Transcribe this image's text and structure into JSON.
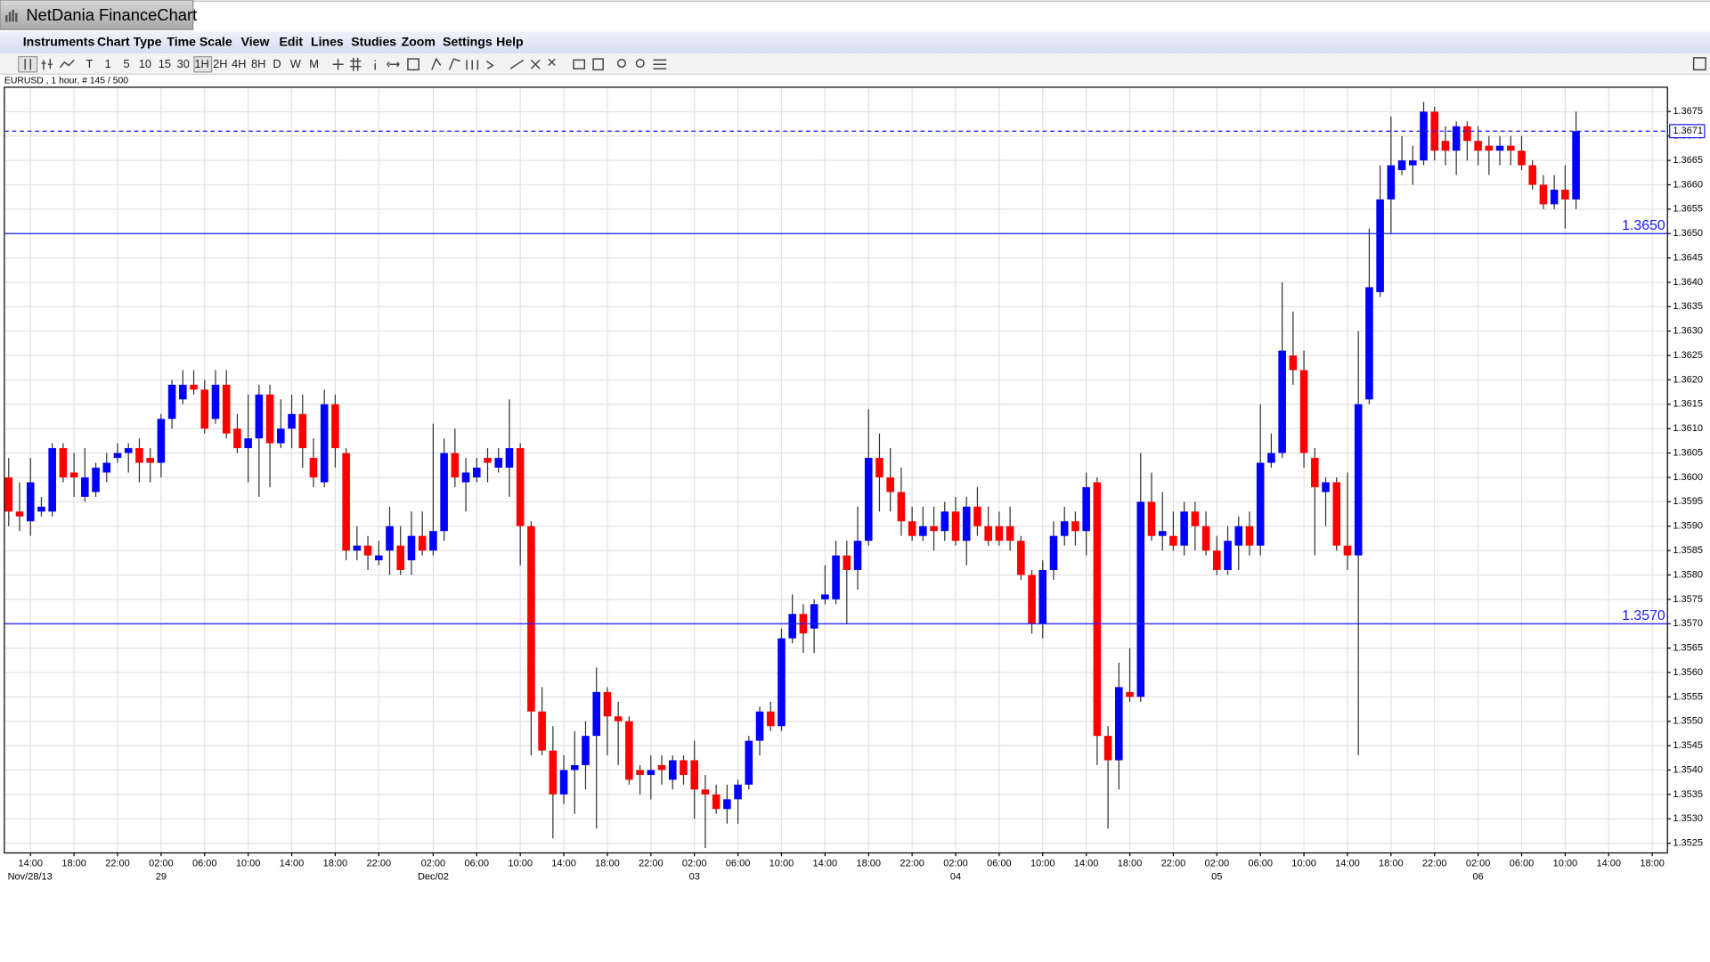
{
  "app": {
    "title": "NetDania FinanceChart",
    "menu": [
      "Instruments",
      "Chart Type",
      "Time Scale",
      "View",
      "Edit",
      "Lines",
      "Studies",
      "Zoom",
      "Settings",
      "Help"
    ],
    "timescales": [
      "T",
      "1",
      "5",
      "10",
      "15",
      "30",
      "1H",
      "2H",
      "4H",
      "8H",
      "D",
      "W",
      "M"
    ],
    "info": "EURUSD , 1 hour, # 145 / 500"
  },
  "chart_data": {
    "type": "candlestick",
    "up_color": "#0000ff",
    "down_color": "#ff0000",
    "grid": true,
    "x": [
      0,
      1,
      2,
      3,
      4,
      5,
      6,
      7,
      8,
      9,
      10,
      11,
      12,
      13,
      14,
      15,
      16,
      17,
      18,
      19,
      20,
      21,
      22,
      23,
      24,
      25,
      26,
      27,
      28,
      29,
      30,
      31,
      32,
      33,
      34,
      35,
      36,
      37,
      38,
      39,
      40,
      41,
      42,
      43,
      44,
      45,
      46,
      47,
      48,
      49,
      50,
      51,
      52,
      53,
      54,
      55,
      56,
      57,
      58,
      59,
      60,
      61,
      62,
      63,
      64,
      65,
      66,
      67,
      68,
      69,
      70,
      71,
      72,
      73,
      74,
      75,
      76,
      77,
      78,
      79,
      80,
      81,
      82,
      83,
      84,
      85,
      86,
      87,
      88,
      89,
      90,
      91,
      92,
      93,
      94,
      95,
      96,
      97,
      98,
      99,
      100,
      101,
      102,
      103,
      104,
      105,
      106,
      107,
      108,
      109,
      110,
      111,
      112,
      113,
      114,
      115,
      116,
      117,
      118,
      119,
      120,
      121,
      122,
      123,
      124,
      125,
      126,
      127,
      128,
      129,
      130,
      131,
      132,
      133,
      134,
      135,
      136,
      137,
      138,
      139,
      140,
      141,
      142,
      143,
      144
    ],
    "ohlc": [
      [
        1.36,
        1.3604,
        1.359,
        1.3593
      ],
      [
        1.3593,
        1.3599,
        1.3589,
        1.3592
      ],
      [
        1.3591,
        1.3604,
        1.3588,
        1.3599
      ],
      [
        1.3593,
        1.3596,
        1.3592,
        1.3594
      ],
      [
        1.3593,
        1.3607,
        1.3592,
        1.3606
      ],
      [
        1.3606,
        1.3607,
        1.3599,
        1.36
      ],
      [
        1.3601,
        1.3605,
        1.3596,
        1.36
      ],
      [
        1.3596,
        1.3606,
        1.3595,
        1.36
      ],
      [
        1.3597,
        1.3603,
        1.3596,
        1.3602
      ],
      [
        1.3601,
        1.3605,
        1.3599,
        1.3603
      ],
      [
        1.3604,
        1.3607,
        1.3603,
        1.3605
      ],
      [
        1.3605,
        1.3607,
        1.3601,
        1.3606
      ],
      [
        1.3606,
        1.3608,
        1.3599,
        1.3603
      ],
      [
        1.3604,
        1.3606,
        1.3599,
        1.3603
      ],
      [
        1.3603,
        1.3613,
        1.36,
        1.3612
      ],
      [
        1.3612,
        1.362,
        1.361,
        1.3619
      ],
      [
        1.3616,
        1.3622,
        1.3615,
        1.3619
      ],
      [
        1.3619,
        1.3622,
        1.3617,
        1.3618
      ],
      [
        1.3618,
        1.362,
        1.3609,
        1.361
      ],
      [
        1.3612,
        1.3622,
        1.3611,
        1.3619
      ],
      [
        1.3619,
        1.3622,
        1.3608,
        1.3609
      ],
      [
        1.361,
        1.3613,
        1.3605,
        1.3606
      ],
      [
        1.3606,
        1.3617,
        1.3599,
        1.3608
      ],
      [
        1.3608,
        1.3619,
        1.3596,
        1.3617
      ],
      [
        1.3617,
        1.3619,
        1.3598,
        1.3607
      ],
      [
        1.3607,
        1.3616,
        1.3606,
        1.361
      ],
      [
        1.361,
        1.3617,
        1.3606,
        1.3613
      ],
      [
        1.3613,
        1.3617,
        1.3602,
        1.3606
      ],
      [
        1.3604,
        1.3608,
        1.3598,
        1.36
      ],
      [
        1.3599,
        1.3618,
        1.3598,
        1.3615
      ],
      [
        1.3615,
        1.3617,
        1.3602,
        1.3606
      ],
      [
        1.3605,
        1.3606,
        1.3583,
        1.3585
      ],
      [
        1.3585,
        1.359,
        1.3583,
        1.3586
      ],
      [
        1.3586,
        1.3588,
        1.3581,
        1.3584
      ],
      [
        1.3583,
        1.3587,
        1.3582,
        1.3584
      ],
      [
        1.3585,
        1.3594,
        1.358,
        1.359
      ],
      [
        1.3586,
        1.359,
        1.358,
        1.3581
      ],
      [
        1.3583,
        1.3593,
        1.358,
        1.3588
      ],
      [
        1.3588,
        1.3593,
        1.3584,
        1.3585
      ],
      [
        1.3585,
        1.3611,
        1.3584,
        1.3589
      ],
      [
        1.3589,
        1.3608,
        1.3587,
        1.3605
      ],
      [
        1.3605,
        1.361,
        1.3598,
        1.36
      ],
      [
        1.3599,
        1.3604,
        1.3593,
        1.3601
      ],
      [
        1.36,
        1.3604,
        1.3599,
        1.3602
      ],
      [
        1.3604,
        1.3606,
        1.3599,
        1.3603
      ],
      [
        1.3602,
        1.3606,
        1.3601,
        1.3604
      ],
      [
        1.3602,
        1.3616,
        1.3596,
        1.3606
      ],
      [
        1.3606,
        1.3607,
        1.3582,
        1.359
      ],
      [
        1.359,
        1.3591,
        1.3543,
        1.3552
      ],
      [
        1.3552,
        1.3557,
        1.3543,
        1.3544
      ],
      [
        1.3544,
        1.3549,
        1.3526,
        1.3535
      ],
      [
        1.3535,
        1.3543,
        1.3533,
        1.354
      ],
      [
        1.354,
        1.3548,
        1.3531,
        1.3541
      ],
      [
        1.3541,
        1.355,
        1.3536,
        1.3547
      ],
      [
        1.3547,
        1.3561,
        1.3528,
        1.3556
      ],
      [
        1.3556,
        1.3557,
        1.3543,
        1.3551
      ],
      [
        1.3551,
        1.3554,
        1.3541,
        1.355
      ],
      [
        1.355,
        1.3551,
        1.3537,
        1.3538
      ],
      [
        1.354,
        1.3541,
        1.3535,
        1.3539
      ],
      [
        1.3539,
        1.3543,
        1.3534,
        1.354
      ],
      [
        1.3541,
        1.3543,
        1.3537,
        1.354
      ],
      [
        1.3538,
        1.3543,
        1.3536,
        1.3542
      ],
      [
        1.3542,
        1.3543,
        1.3537,
        1.3539
      ],
      [
        1.3542,
        1.3546,
        1.353,
        1.3536
      ],
      [
        1.3536,
        1.3539,
        1.3524,
        1.3535
      ],
      [
        1.3535,
        1.3537,
        1.3531,
        1.3532
      ],
      [
        1.3532,
        1.3537,
        1.3529,
        1.3534
      ],
      [
        1.3534,
        1.3538,
        1.3529,
        1.3537
      ],
      [
        1.3537,
        1.3547,
        1.3536,
        1.3546
      ],
      [
        1.3546,
        1.3553,
        1.3543,
        1.3552
      ],
      [
        1.3552,
        1.3554,
        1.3548,
        1.3549
      ],
      [
        1.3549,
        1.3569,
        1.3548,
        1.3567
      ],
      [
        1.3567,
        1.3576,
        1.3566,
        1.3572
      ],
      [
        1.3572,
        1.3574,
        1.3564,
        1.3568
      ],
      [
        1.3569,
        1.3575,
        1.3564,
        1.3574
      ],
      [
        1.3575,
        1.3582,
        1.3574,
        1.3576
      ],
      [
        1.3575,
        1.3587,
        1.3574,
        1.3584
      ],
      [
        1.3584,
        1.3587,
        1.357,
        1.3581
      ],
      [
        1.3581,
        1.3594,
        1.3577,
        1.3587
      ],
      [
        1.3587,
        1.3614,
        1.3586,
        1.3604
      ],
      [
        1.3604,
        1.3609,
        1.3593,
        1.36
      ],
      [
        1.36,
        1.3606,
        1.3593,
        1.3597
      ],
      [
        1.3597,
        1.3602,
        1.3588,
        1.3591
      ],
      [
        1.3591,
        1.3594,
        1.3587,
        1.3588
      ],
      [
        1.3588,
        1.3594,
        1.3587,
        1.359
      ],
      [
        1.359,
        1.3594,
        1.3585,
        1.3589
      ],
      [
        1.3589,
        1.3595,
        1.3587,
        1.3593
      ],
      [
        1.3593,
        1.3596,
        1.3586,
        1.3587
      ],
      [
        1.3587,
        1.3596,
        1.3582,
        1.3594
      ],
      [
        1.3594,
        1.3598,
        1.3588,
        1.359
      ],
      [
        1.359,
        1.3594,
        1.3586,
        1.3587
      ],
      [
        1.359,
        1.3593,
        1.3586,
        1.3587
      ],
      [
        1.359,
        1.3594,
        1.3585,
        1.3587
      ],
      [
        1.3587,
        1.3588,
        1.3579,
        1.358
      ],
      [
        1.358,
        1.3581,
        1.3568,
        1.357
      ],
      [
        1.357,
        1.3583,
        1.3567,
        1.3581
      ],
      [
        1.3581,
        1.3591,
        1.3579,
        1.3588
      ],
      [
        1.3588,
        1.3594,
        1.3586,
        1.3591
      ],
      [
        1.3591,
        1.3593,
        1.3586,
        1.3589
      ],
      [
        1.3589,
        1.3601,
        1.3584,
        1.3598
      ],
      [
        1.3599,
        1.36,
        1.3541,
        1.3547
      ],
      [
        1.3547,
        1.3549,
        1.3528,
        1.3542
      ],
      [
        1.3542,
        1.3562,
        1.3536,
        1.3557
      ],
      [
        1.3556,
        1.3565,
        1.3554,
        1.3555
      ],
      [
        1.3555,
        1.3605,
        1.3554,
        1.3595
      ],
      [
        1.3595,
        1.3601,
        1.3587,
        1.3588
      ],
      [
        1.3588,
        1.3597,
        1.3585,
        1.3589
      ],
      [
        1.3588,
        1.3593,
        1.3585,
        1.3586
      ],
      [
        1.3586,
        1.3595,
        1.3584,
        1.3593
      ],
      [
        1.3593,
        1.3595,
        1.3585,
        1.359
      ],
      [
        1.359,
        1.3593,
        1.3584,
        1.3585
      ],
      [
        1.3585,
        1.3588,
        1.358,
        1.3581
      ],
      [
        1.3581,
        1.359,
        1.358,
        1.3587
      ],
      [
        1.3586,
        1.3592,
        1.3581,
        1.359
      ],
      [
        1.359,
        1.3593,
        1.3584,
        1.3586
      ],
      [
        1.3586,
        1.3615,
        1.3584,
        1.3603
      ],
      [
        1.3603,
        1.3609,
        1.3602,
        1.3605
      ],
      [
        1.3605,
        1.364,
        1.3604,
        1.3626
      ],
      [
        1.3625,
        1.3634,
        1.3619,
        1.3622
      ],
      [
        1.3622,
        1.3626,
        1.3602,
        1.3605
      ],
      [
        1.3604,
        1.3606,
        1.3584,
        1.3598
      ],
      [
        1.3597,
        1.36,
        1.359,
        1.3599
      ],
      [
        1.3599,
        1.36,
        1.3585,
        1.3586
      ],
      [
        1.3586,
        1.3601,
        1.3581,
        1.3584
      ],
      [
        1.3584,
        1.363,
        1.3543,
        1.3615
      ],
      [
        1.3616,
        1.3651,
        1.3615,
        1.3639
      ],
      [
        1.3638,
        1.3664,
        1.3637,
        1.3657
      ],
      [
        1.3657,
        1.3674,
        1.365,
        1.3664
      ],
      [
        1.3663,
        1.367,
        1.3662,
        1.3665
      ],
      [
        1.3664,
        1.3668,
        1.366,
        1.3665
      ],
      [
        1.3665,
        1.3677,
        1.3664,
        1.3675
      ],
      [
        1.3675,
        1.3676,
        1.3665,
        1.3667
      ],
      [
        1.3669,
        1.3672,
        1.3664,
        1.3667
      ],
      [
        1.3667,
        1.3673,
        1.3662,
        1.3672
      ],
      [
        1.3672,
        1.3673,
        1.3665,
        1.3669
      ],
      [
        1.3669,
        1.3672,
        1.3664,
        1.3667
      ],
      [
        1.3668,
        1.367,
        1.3662,
        1.3667
      ],
      [
        1.3667,
        1.367,
        1.3664,
        1.3668
      ],
      [
        1.3668,
        1.367,
        1.3664,
        1.3667
      ],
      [
        1.3667,
        1.367,
        1.3663,
        1.3664
      ],
      [
        1.3664,
        1.3665,
        1.3659,
        1.366
      ],
      [
        1.366,
        1.3662,
        1.3655,
        1.3656
      ],
      [
        1.3656,
        1.3662,
        1.3655,
        1.3659
      ],
      [
        1.3659,
        1.3664,
        1.3651,
        1.3657
      ],
      [
        1.3657,
        1.3675,
        1.3655,
        1.3671
      ]
    ],
    "xlim": [
      -0.4,
      152.4
    ],
    "ylim": [
      1.3523,
      1.368
    ],
    "yticks": [
      1.3675,
      {
        "value": 1.367,
        "label": "1.3670"
      },
      1.3665,
      {
        "value": 1.366,
        "label": "1.3660"
      },
      1.3655,
      {
        "value": 1.365,
        "label": "1.3650"
      },
      1.3645,
      {
        "value": 1.364,
        "label": "1.3640"
      },
      1.3635,
      {
        "value": 1.363,
        "label": "1.3630"
      },
      1.3625,
      {
        "value": 1.362,
        "label": "1.3620"
      },
      1.3615,
      {
        "value": 1.361,
        "label": "1.3610"
      },
      1.3605,
      {
        "value": 1.36,
        "label": "1.3600"
      },
      1.3595,
      {
        "value": 1.359,
        "label": "1.3590"
      },
      1.3585,
      {
        "value": 1.358,
        "label": "1.3580"
      },
      1.3575,
      {
        "value": 1.357,
        "label": "1.3570"
      },
      1.3565,
      {
        "value": 1.356,
        "label": "1.3560"
      },
      1.3555,
      {
        "value": 1.355,
        "label": "1.3550"
      },
      1.3545,
      {
        "value": 1.354,
        "label": "1.3540"
      },
      1.3535,
      {
        "value": 1.353,
        "label": "1.3530"
      },
      1.3525
    ],
    "xticks": [
      {
        "value": 2,
        "label": "14:00"
      },
      {
        "value": 6,
        "label": "18:00"
      },
      {
        "value": 10,
        "label": "22:00"
      },
      {
        "value": 14,
        "label": "02:00"
      },
      {
        "value": 18,
        "label": "06:00"
      },
      {
        "value": 22,
        "label": "10:00"
      },
      {
        "value": 26,
        "label": "14:00"
      },
      {
        "value": 30,
        "label": "18:00"
      },
      {
        "value": 34,
        "label": "22:00"
      },
      {
        "value": 39,
        "label": "02:00"
      },
      {
        "value": 43,
        "label": "06:00"
      },
      {
        "value": 47,
        "label": "10:00"
      },
      {
        "value": 51,
        "label": "14:00"
      },
      {
        "value": 55,
        "label": "18:00"
      },
      {
        "value": 59,
        "label": "22:00"
      },
      {
        "value": 63,
        "label": "02:00"
      },
      {
        "value": 67,
        "label": "06:00"
      },
      {
        "value": 71,
        "label": "10:00"
      },
      {
        "value": 75,
        "label": "14:00"
      },
      {
        "value": 79,
        "label": "18:00"
      },
      {
        "value": 83,
        "label": "22:00"
      },
      {
        "value": 87,
        "label": "02:00"
      },
      {
        "value": 91,
        "label": "06:00"
      },
      {
        "value": 95,
        "label": "10:00"
      },
      {
        "value": 99,
        "label": "14:00"
      },
      {
        "value": 103,
        "label": "18:00"
      },
      {
        "value": 107,
        "label": "22:00"
      },
      {
        "value": 111,
        "label": "02:00"
      },
      {
        "value": 115,
        "label": "06:00"
      },
      {
        "value": 119,
        "label": "10:00"
      },
      {
        "value": 123,
        "label": "14:00"
      },
      {
        "value": 127,
        "label": "18:00"
      },
      {
        "value": 131,
        "label": "22:00"
      },
      {
        "value": 135,
        "label": "02:00"
      },
      {
        "value": 139,
        "label": "06:00"
      },
      {
        "value": 143,
        "label": "10:00"
      },
      {
        "value": 147,
        "label": "14:00"
      },
      {
        "value": 151,
        "label": "18:00"
      }
    ],
    "xdates": [
      {
        "value": 2,
        "label": "Nov/28/13"
      },
      {
        "value": 14,
        "label": "29"
      },
      {
        "value": 39,
        "label": "Dec/02"
      },
      {
        "value": 63,
        "label": "03"
      },
      {
        "value": 87,
        "label": "04"
      },
      {
        "value": 111,
        "label": "05"
      },
      {
        "value": 135,
        "label": "06"
      }
    ],
    "levels": [
      {
        "value": 1.365,
        "label": "1.3650"
      },
      {
        "value": 1.357,
        "label": "1.3570"
      }
    ],
    "level_color": "#1a1aff",
    "last_price": 1.3671
  }
}
